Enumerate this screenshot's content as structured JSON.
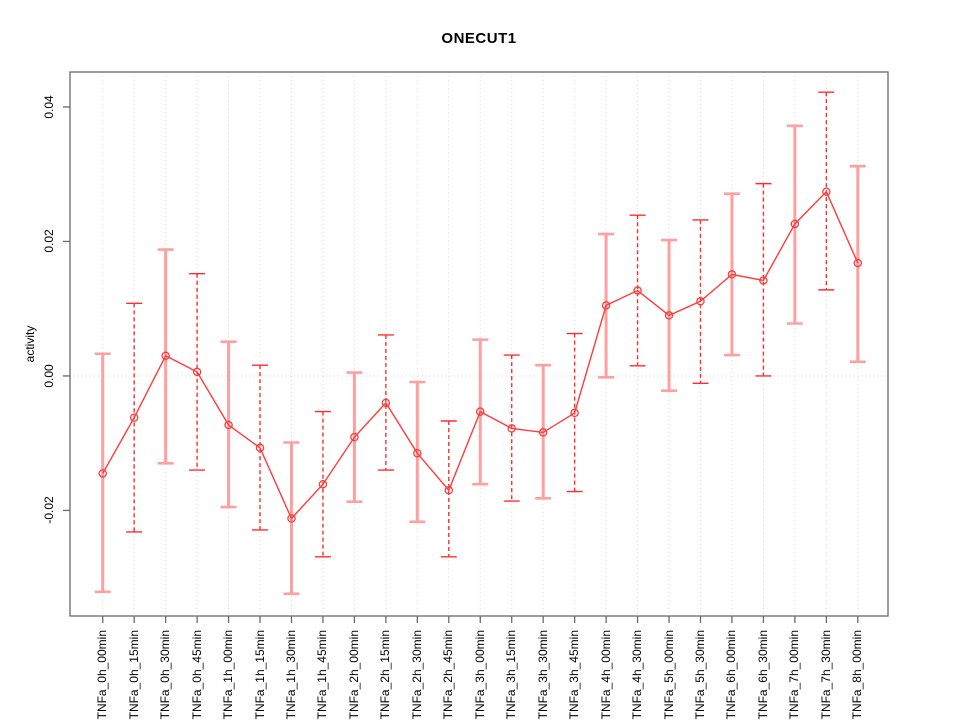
{
  "chart_data": {
    "type": "line",
    "title": "ONECUT1",
    "xlabel": "",
    "ylabel": "activity",
    "categories": [
      "TNFa_0h_00min",
      "TNFa_0h_15min",
      "TNFa_0h_30min",
      "TNFa_0h_45min",
      "TNFa_1h_00min",
      "TNFa_1h_15min",
      "TNFa_1h_30min",
      "TNFa_1h_45min",
      "TNFa_2h_00min",
      "TNFa_2h_15min",
      "TNFa_2h_30min",
      "TNFa_2h_45min",
      "TNFa_3h_00min",
      "TNFa_3h_15min",
      "TNFa_3h_30min",
      "TNFa_3h_45min",
      "TNFa_4h_00min",
      "TNFa_4h_30min",
      "TNFa_5h_00min",
      "TNFa_5h_30min",
      "TNFa_6h_00min",
      "TNFa_6h_30min",
      "TNFa_7h_00min",
      "TNFa_7h_30min",
      "TNFa_8h_00min"
    ],
    "series": [
      {
        "name": "activity",
        "values": [
          -0.0145,
          -0.0062,
          0.003,
          0.0006,
          -0.0073,
          -0.0107,
          -0.0212,
          -0.0161,
          -0.0091,
          -0.004,
          -0.0115,
          -0.017,
          -0.0053,
          -0.0078,
          -0.0084,
          -0.0055,
          0.0105,
          0.0127,
          0.009,
          0.0111,
          0.0151,
          0.0142,
          0.0226,
          0.0274,
          0.0168
        ],
        "error_upper": [
          0.0033,
          0.0108,
          0.0188,
          0.0152,
          0.0051,
          0.0016,
          -0.0099,
          -0.0053,
          0.0005,
          0.0061,
          -0.0009,
          -0.0067,
          0.0054,
          0.0031,
          0.0016,
          0.0063,
          0.0211,
          0.0239,
          0.0202,
          0.0232,
          0.0271,
          0.0286,
          0.0372,
          0.0422,
          0.0312
        ],
        "error_lower": [
          -0.0321,
          -0.0232,
          -0.013,
          -0.014,
          -0.0195,
          -0.0229,
          -0.0324,
          -0.0269,
          -0.0187,
          -0.014,
          -0.0217,
          -0.0269,
          -0.0161,
          -0.0186,
          -0.0182,
          -0.0172,
          -0.0002,
          0.0015,
          -0.0022,
          -0.0011,
          0.0031,
          0.0,
          0.0078,
          0.0128,
          0.0021
        ]
      }
    ],
    "yticks": {
      "values": [
        0.04,
        0.02,
        0.0,
        -0.02
      ],
      "labels": [
        "0.04",
        "0.02",
        "0.00",
        "-0.02"
      ]
    },
    "ylim": [
      -0.0357,
      0.0452
    ],
    "grid": {
      "vertical_gridlines": "dotted at every category",
      "horizontal_zero_line": "dotted"
    },
    "marker": "open-circle",
    "colors": {
      "line": "#ff3b3b",
      "point": "#ff3b3b",
      "error_bar_solid": "#ff9f9f",
      "error_bar_dashed": "#ff2d2d",
      "grid": "#dadada",
      "box": "#696969",
      "text": "#000000",
      "background": "#ffffff"
    }
  }
}
